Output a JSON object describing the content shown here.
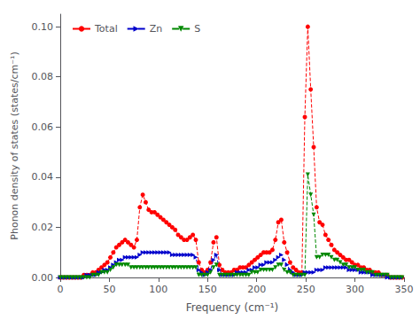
{
  "chart_data": {
    "type": "line",
    "xlabel": "Frequency (cm⁻¹)",
    "ylabel": "Phonon density of states (states/cm⁻¹)",
    "xlim": [
      0,
      350
    ],
    "ylim": [
      0,
      0.105
    ],
    "xticks": [
      0,
      50,
      100,
      150,
      200,
      250,
      300,
      350
    ],
    "yticks": [
      {
        "value": 0.0,
        "label": "0.00"
      },
      0.02,
      0.04,
      0.06,
      0.08,
      {
        "value": 0.1,
        "label": "0.10"
      }
    ],
    "grid": false,
    "legend": "upper left",
    "x": [
      0,
      3,
      6,
      9,
      12,
      15,
      18,
      21,
      24,
      27,
      30,
      33,
      36,
      39,
      42,
      45,
      48,
      51,
      54,
      57,
      60,
      63,
      66,
      69,
      72,
      75,
      78,
      81,
      84,
      87,
      90,
      93,
      96,
      99,
      102,
      105,
      108,
      111,
      114,
      117,
      120,
      123,
      126,
      129,
      132,
      135,
      138,
      141,
      144,
      147,
      150,
      153,
      156,
      159,
      162,
      165,
      168,
      171,
      174,
      177,
      180,
      183,
      186,
      189,
      192,
      195,
      198,
      201,
      204,
      207,
      210,
      213,
      216,
      219,
      222,
      225,
      228,
      231,
      234,
      237,
      240,
      243,
      246,
      249,
      252,
      255,
      258,
      261,
      264,
      267,
      270,
      273,
      276,
      279,
      282,
      285,
      288,
      291,
      294,
      297,
      300,
      303,
      306,
      309,
      312,
      315,
      318,
      321,
      324,
      327,
      330,
      333,
      336,
      339,
      342,
      345,
      348
    ],
    "series": [
      {
        "name": "Total",
        "color": "#ff0000",
        "marker": "circle",
        "line_style": "dashed",
        "values": [
          0.0,
          0.0,
          0.0,
          0.0,
          0.0,
          0.0,
          0.0,
          0.0,
          0.001,
          0.001,
          0.001,
          0.002,
          0.002,
          0.003,
          0.004,
          0.005,
          0.006,
          0.008,
          0.01,
          0.012,
          0.013,
          0.014,
          0.015,
          0.014,
          0.013,
          0.012,
          0.015,
          0.028,
          0.033,
          0.03,
          0.027,
          0.026,
          0.026,
          0.025,
          0.024,
          0.023,
          0.022,
          0.021,
          0.02,
          0.019,
          0.017,
          0.016,
          0.015,
          0.015,
          0.016,
          0.017,
          0.015,
          0.006,
          0.003,
          0.002,
          0.003,
          0.006,
          0.014,
          0.016,
          0.005,
          0.003,
          0.002,
          0.002,
          0.002,
          0.003,
          0.003,
          0.004,
          0.004,
          0.004,
          0.005,
          0.006,
          0.007,
          0.008,
          0.009,
          0.01,
          0.01,
          0.01,
          0.011,
          0.015,
          0.022,
          0.023,
          0.014,
          0.01,
          0.006,
          0.004,
          0.003,
          0.002,
          0.002,
          0.064,
          0.1,
          0.075,
          0.052,
          0.028,
          0.022,
          0.021,
          0.017,
          0.015,
          0.013,
          0.011,
          0.01,
          0.009,
          0.008,
          0.007,
          0.007,
          0.006,
          0.005,
          0.005,
          0.004,
          0.004,
          0.003,
          0.003,
          0.002,
          0.002,
          0.002,
          0.001,
          0.001,
          0.001,
          0.0,
          0.0,
          0.0,
          0.0,
          0.0
        ]
      },
      {
        "name": "Zn",
        "color": "#0000cc",
        "marker": "triangle_right",
        "line_style": "dashed",
        "values": [
          0.0,
          0.0,
          0.0,
          0.0,
          0.0,
          0.0,
          0.0,
          0.0,
          0.0,
          0.001,
          0.001,
          0.001,
          0.001,
          0.002,
          0.002,
          0.003,
          0.003,
          0.004,
          0.005,
          0.006,
          0.007,
          0.007,
          0.008,
          0.008,
          0.008,
          0.008,
          0.008,
          0.009,
          0.01,
          0.01,
          0.01,
          0.01,
          0.01,
          0.01,
          0.01,
          0.01,
          0.01,
          0.01,
          0.009,
          0.009,
          0.009,
          0.009,
          0.009,
          0.009,
          0.009,
          0.009,
          0.008,
          0.003,
          0.002,
          0.001,
          0.002,
          0.003,
          0.007,
          0.009,
          0.003,
          0.001,
          0.001,
          0.001,
          0.001,
          0.001,
          0.002,
          0.002,
          0.002,
          0.002,
          0.003,
          0.003,
          0.004,
          0.004,
          0.005,
          0.005,
          0.006,
          0.006,
          0.006,
          0.007,
          0.008,
          0.009,
          0.007,
          0.005,
          0.003,
          0.002,
          0.001,
          0.001,
          0.001,
          0.002,
          0.002,
          0.002,
          0.002,
          0.003,
          0.003,
          0.003,
          0.004,
          0.004,
          0.004,
          0.004,
          0.004,
          0.004,
          0.004,
          0.004,
          0.003,
          0.003,
          0.003,
          0.003,
          0.002,
          0.002,
          0.002,
          0.002,
          0.001,
          0.001,
          0.001,
          0.001,
          0.001,
          0.0,
          0.0,
          0.0,
          0.0,
          0.0,
          0.0
        ]
      },
      {
        "name": "S",
        "color": "#008800",
        "marker": "triangle_down",
        "line_style": "dashed",
        "values": [
          0.0,
          0.0,
          0.0,
          0.0,
          0.0,
          0.0,
          0.0,
          0.0,
          0.0,
          0.0,
          0.0,
          0.001,
          0.001,
          0.001,
          0.002,
          0.002,
          0.002,
          0.003,
          0.004,
          0.005,
          0.005,
          0.005,
          0.005,
          0.005,
          0.004,
          0.004,
          0.004,
          0.004,
          0.004,
          0.004,
          0.004,
          0.004,
          0.004,
          0.004,
          0.004,
          0.004,
          0.004,
          0.004,
          0.004,
          0.004,
          0.004,
          0.004,
          0.004,
          0.004,
          0.004,
          0.004,
          0.004,
          0.001,
          0.001,
          0.001,
          0.001,
          0.002,
          0.004,
          0.005,
          0.001,
          0.001,
          0.001,
          0.001,
          0.001,
          0.001,
          0.001,
          0.001,
          0.001,
          0.001,
          0.001,
          0.002,
          0.002,
          0.002,
          0.003,
          0.003,
          0.003,
          0.003,
          0.003,
          0.004,
          0.005,
          0.005,
          0.003,
          0.002,
          0.002,
          0.001,
          0.001,
          0.001,
          0.001,
          0.001,
          0.041,
          0.033,
          0.025,
          0.008,
          0.008,
          0.009,
          0.009,
          0.009,
          0.008,
          0.007,
          0.007,
          0.006,
          0.005,
          0.005,
          0.004,
          0.004,
          0.004,
          0.003,
          0.003,
          0.003,
          0.002,
          0.002,
          0.002,
          0.001,
          0.001,
          0.001,
          0.001,
          0.001,
          0.0,
          0.0,
          0.0,
          0.0,
          0.0
        ]
      }
    ]
  }
}
